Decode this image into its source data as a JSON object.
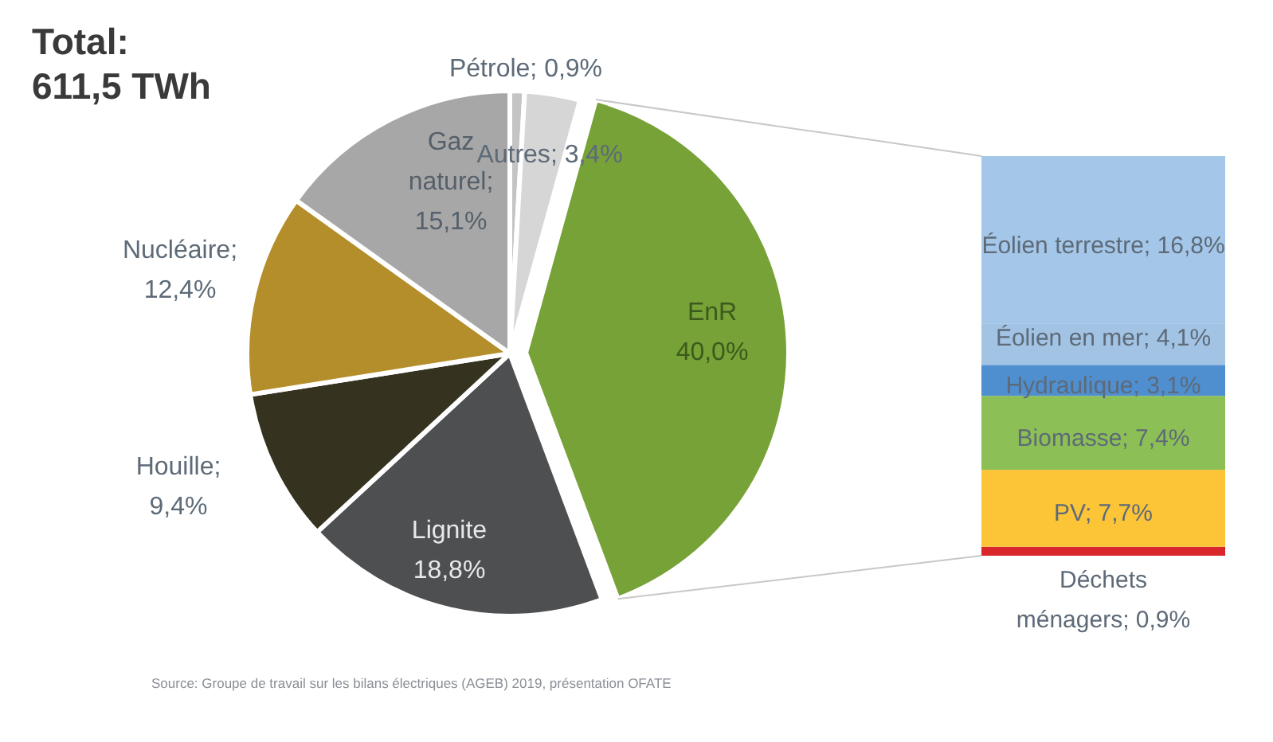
{
  "chart_data": [
    {
      "type": "pie",
      "title": "Total:\n611,5 TWh",
      "categories": [
        "Pétrole",
        "Autres",
        "EnR",
        "Lignite",
        "Houille",
        "Nucléaire",
        "Gaz naturel"
      ],
      "values": [
        0.9,
        3.4,
        40.0,
        18.8,
        9.4,
        12.4,
        15.1
      ],
      "colors": [
        "#c4c4c4",
        "#d6d6d6",
        "#77a237",
        "#4e4f51",
        "#35321f",
        "#b58e2c",
        "#a7a7a7"
      ],
      "value_labels": [
        "; 0,9%",
        "; 3,4%",
        "40,0%",
        "18,8%",
        ";\n9,4%",
        ";\n12,4%",
        ";\n15,1%"
      ],
      "annotations": [
        "Source: Groupe de travail sur les bilans électriques (AGEB) 2019, présentation OFATE"
      ]
    },
    {
      "type": "bar",
      "stacked": true,
      "categories": [
        null
      ],
      "series": [
        {
          "name": "Déchets ménagers",
          "color": "#d9262b",
          "values": [
            0.9
          ],
          "value_labels": [
            "; 0,9%"
          ]
        },
        {
          "name": "PV",
          "color": "#fcc537",
          "values": [
            7.7
          ],
          "value_labels": [
            "; 7,7%"
          ]
        },
        {
          "name": "Biomasse",
          "color": "#8dbf57",
          "values": [
            7.4
          ],
          "value_labels": [
            "; 7,4%"
          ]
        },
        {
          "name": "Hydraulique",
          "color": "#4f8fd0",
          "values": [
            3.1
          ],
          "value_labels": [
            "; 3,1%"
          ]
        },
        {
          "name": "Éolien en mer",
          "color": "#a2c3e4",
          "values": [
            4.1
          ],
          "value_labels": [
            "; 4,1%"
          ]
        },
        {
          "name": "Éolien terrestre",
          "color": "#a4c6e8",
          "values": [
            16.8
          ],
          "value_labels": [
            "; 16,8%"
          ]
        }
      ]
    }
  ]
}
